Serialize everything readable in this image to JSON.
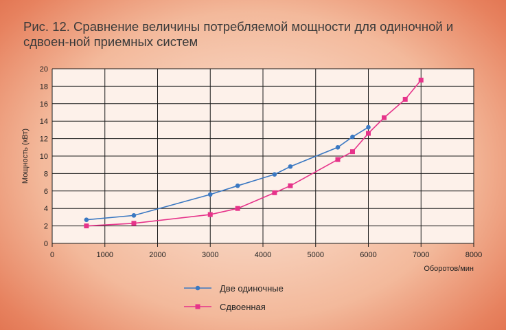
{
  "chart_data": {
    "type": "line",
    "title": "Рис. 12. Сравнение величины потребляемой мощности для одиночной и сдвоен-ной приемных систем",
    "xlabel": "Оборотов/мин",
    "ylabel": "Мощность (кВт)",
    "xlim": [
      0,
      8000
    ],
    "ylim": [
      0,
      20
    ],
    "xticks": [
      0,
      1000,
      2000,
      3000,
      4000,
      5000,
      6000,
      7000,
      8000
    ],
    "yticks": [
      0,
      2,
      4,
      6,
      8,
      10,
      12,
      14,
      16,
      18,
      20
    ],
    "grid": true,
    "legend_position": "bottom-center",
    "series": [
      {
        "name": "Две одиночные",
        "color": "#3a78c2",
        "marker": "circle",
        "points": [
          [
            650,
            2.7
          ],
          [
            1550,
            3.2
          ],
          [
            3000,
            5.6
          ],
          [
            3520,
            6.6
          ],
          [
            4220,
            7.9
          ],
          [
            4520,
            8.8
          ],
          [
            5420,
            11.0
          ],
          [
            5700,
            12.2
          ],
          [
            6000,
            13.3
          ]
        ]
      },
      {
        "name": "Сдвоенная",
        "color": "#e6338a",
        "marker": "square",
        "points": [
          [
            650,
            2.0
          ],
          [
            1550,
            2.3
          ],
          [
            3000,
            3.3
          ],
          [
            3520,
            4.0
          ],
          [
            4220,
            5.8
          ],
          [
            4520,
            6.6
          ],
          [
            5420,
            9.6
          ],
          [
            5700,
            10.5
          ],
          [
            6000,
            12.6
          ],
          [
            6300,
            14.4
          ],
          [
            6700,
            16.5
          ],
          [
            7000,
            18.7
          ]
        ]
      }
    ]
  }
}
